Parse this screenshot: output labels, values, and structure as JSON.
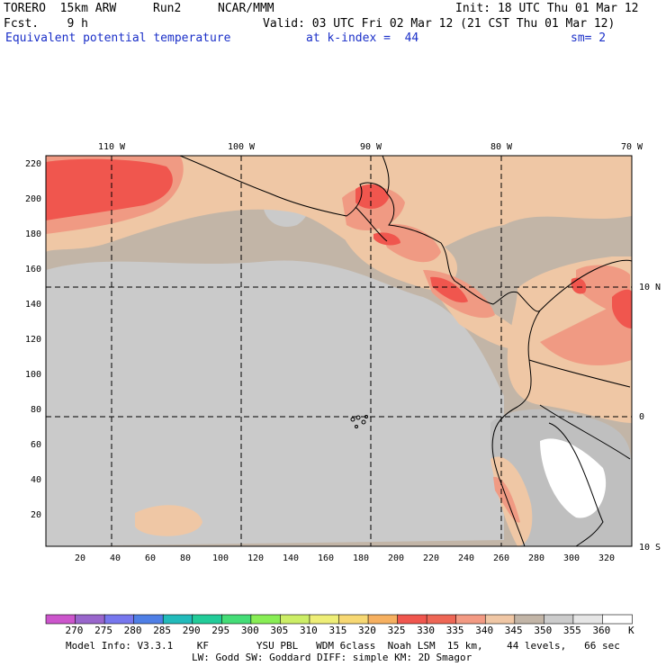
{
  "header": {
    "model": "TORERO  15km ARW",
    "run": "Run2",
    "org": "NCAR/MMM",
    "init": "Init: 18 UTC Thu 01 Mar 12",
    "fcst": "Fcst.    9 h",
    "valid": "Valid: 03 UTC Fri 02 Mar 12 (21 CST Thu 01 Mar 12)",
    "field": "Equivalent potential temperature",
    "level": "at k-index =  44",
    "smooth": "sm= 2"
  },
  "map": {
    "lon_labels": [
      "110 W",
      "100 W",
      "90 W",
      "80 W",
      "70 W"
    ],
    "lat_labels": [
      "10 N",
      "0",
      "10 S"
    ],
    "y_ticks": [
      "220",
      "200",
      "180",
      "160",
      "140",
      "120",
      "100",
      "80",
      "60",
      "40",
      "20"
    ],
    "x_ticks": [
      "20",
      "40",
      "60",
      "80",
      "100",
      "120",
      "140",
      "160",
      "180",
      "200",
      "220",
      "240",
      "260",
      "280",
      "300",
      "320"
    ],
    "colors": {
      "ocean_base": "#c2b5a7",
      "ocean_gray": "#cacaca",
      "warm_light": "#efc7a5",
      "warm_mid": "#f09a83",
      "warm_hot": "#f0564e",
      "land_gray": "#bfbfbf",
      "white": "#ffffff"
    }
  },
  "colorbar": {
    "labels": [
      "270",
      "275",
      "280",
      "285",
      "290",
      "295",
      "300",
      "305",
      "310",
      "315",
      "320",
      "325",
      "330",
      "335",
      "340",
      "345",
      "350",
      "355",
      "360"
    ],
    "unit": "K",
    "colors": [
      "#cc55cc",
      "#9966cc",
      "#7777ee",
      "#4f7fe6",
      "#22bbbb",
      "#22cc99",
      "#44dd77",
      "#88ee55",
      "#ccee66",
      "#eeee77",
      "#f7d873",
      "#f6b060",
      "#f0564e",
      "#ee6655",
      "#f39a83",
      "#f0c7a5",
      "#c2b5a7",
      "#cccccc",
      "#e6e6e6",
      "#ffffff"
    ]
  },
  "footer": {
    "line1": "Model Info: V3.3.1    KF        YSU PBL   WDM 6class  Noah LSM  15 km,    44 levels,   66 sec",
    "line2": "LW: Godd SW: Goddard DIFF: simple KM: 2D Smagor"
  }
}
